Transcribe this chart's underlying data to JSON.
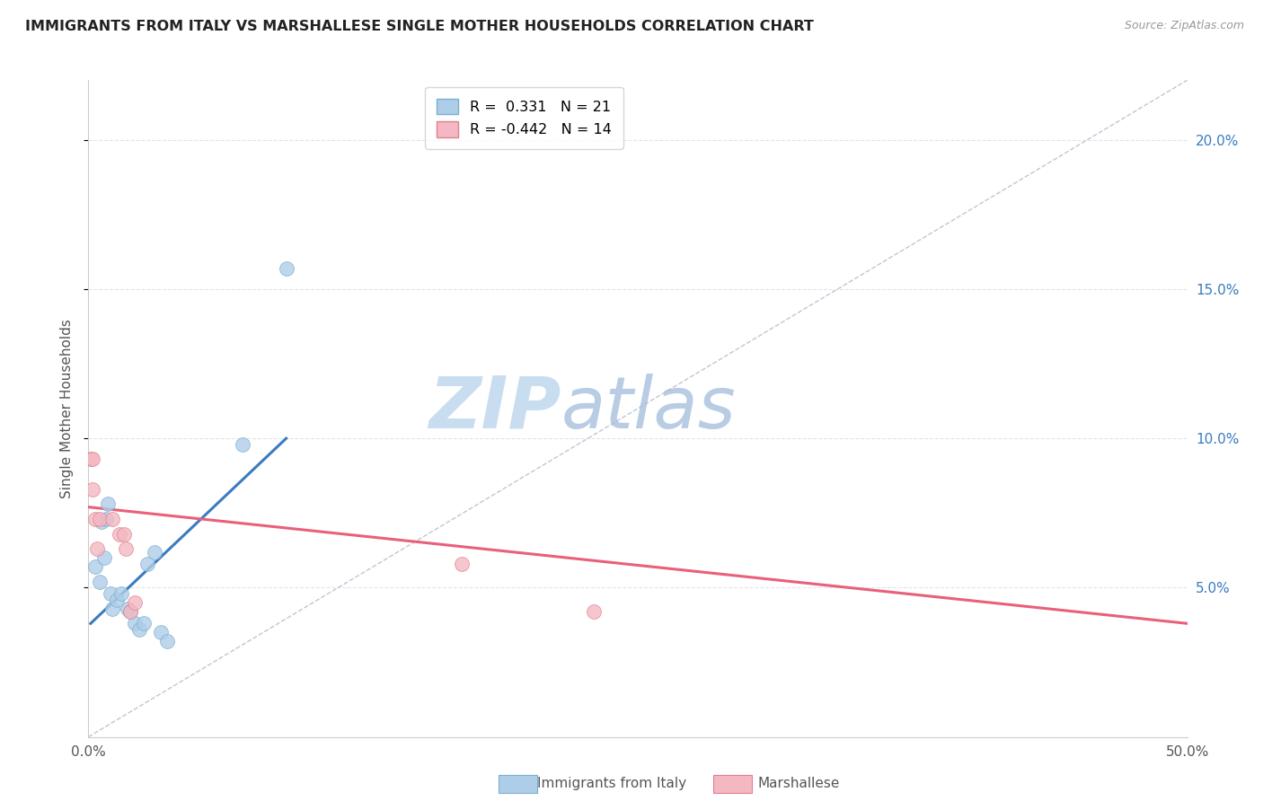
{
  "title": "IMMIGRANTS FROM ITALY VS MARSHALLESE SINGLE MOTHER HOUSEHOLDS CORRELATION CHART",
  "source": "Source: ZipAtlas.com",
  "ylabel": "Single Mother Households",
  "legend_blue_r": "0.331",
  "legend_blue_n": "21",
  "legend_pink_r": "-0.442",
  "legend_pink_n": "14",
  "xlim": [
    0.0,
    0.5
  ],
  "ylim": [
    0.0,
    0.22
  ],
  "yticks": [
    0.05,
    0.1,
    0.15,
    0.2
  ],
  "ytick_labels": [
    "5.0%",
    "10.0%",
    "15.0%",
    "20.0%"
  ],
  "xticks": [
    0.0,
    0.1,
    0.2,
    0.3,
    0.4,
    0.5
  ],
  "xtick_labels": [
    "0.0%",
    "",
    "",
    "",
    "",
    "50.0%"
  ],
  "blue_scatter_x": [
    0.003,
    0.005,
    0.006,
    0.007,
    0.008,
    0.009,
    0.01,
    0.011,
    0.013,
    0.015,
    0.018,
    0.019,
    0.021,
    0.023,
    0.025,
    0.027,
    0.03,
    0.033,
    0.036,
    0.07,
    0.09
  ],
  "blue_scatter_y": [
    0.057,
    0.052,
    0.072,
    0.06,
    0.073,
    0.078,
    0.048,
    0.043,
    0.046,
    0.048,
    0.043,
    0.042,
    0.038,
    0.036,
    0.038,
    0.058,
    0.062,
    0.035,
    0.032,
    0.098,
    0.157
  ],
  "pink_scatter_x": [
    0.001,
    0.002,
    0.002,
    0.003,
    0.004,
    0.005,
    0.011,
    0.014,
    0.016,
    0.017,
    0.019,
    0.021,
    0.17,
    0.23
  ],
  "pink_scatter_y": [
    0.093,
    0.093,
    0.083,
    0.073,
    0.063,
    0.073,
    0.073,
    0.068,
    0.068,
    0.063,
    0.042,
    0.045,
    0.058,
    0.042
  ],
  "blue_line_x": [
    0.001,
    0.09
  ],
  "blue_line_y": [
    0.038,
    0.1
  ],
  "pink_line_x": [
    0.0,
    0.5
  ],
  "pink_line_y": [
    0.077,
    0.038
  ],
  "dashed_line_x": [
    0.0,
    0.5
  ],
  "dashed_line_y": [
    0.0,
    0.22
  ],
  "marker_size": 130,
  "blue_color": "#aecde8",
  "pink_color": "#f4b8c2",
  "blue_line_color": "#3a7bbf",
  "pink_line_color": "#e8607a",
  "dashed_line_color": "#b0b8c8",
  "background_color": "#ffffff",
  "grid_color": "#e0e4ea",
  "title_color": "#222222",
  "axis_label_color": "#555555",
  "right_ytick_labels": [
    "5.0%",
    "10.0%",
    "15.0%",
    "20.0%"
  ],
  "watermark_zip_color": "#c8ddf0",
  "watermark_atlas_color": "#b8cce4",
  "watermark_fontsize": 58,
  "legend_blue_color": "#aecde8",
  "legend_pink_color": "#f4b8c2"
}
